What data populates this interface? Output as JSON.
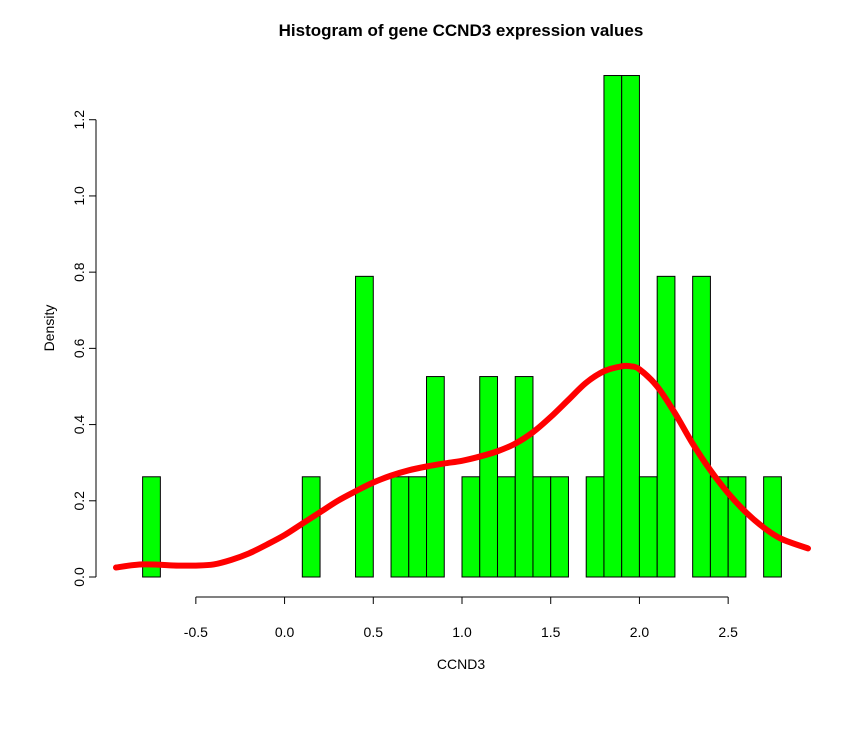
{
  "chart_data": {
    "type": "bar",
    "title": "Histogram of gene CCND3 expression values",
    "xlabel": "CCND3",
    "ylabel": "Density",
    "xlim": [
      -0.95,
      2.95
    ],
    "ylim": [
      0,
      1.32
    ],
    "x_ticks": [
      "-0.5",
      "0.0",
      "0.5",
      "1.0",
      "1.5",
      "2.0",
      "2.5"
    ],
    "y_ticks": [
      "0.0",
      "0.2",
      "0.4",
      "0.6",
      "0.8",
      "1.0",
      "1.2"
    ],
    "bar_color": "#00ff00",
    "line_color": "#ff0000",
    "bins": [
      {
        "x0": -0.8,
        "x1": -0.7,
        "density": 0.263
      },
      {
        "x0": 0.1,
        "x1": 0.2,
        "density": 0.263
      },
      {
        "x0": 0.4,
        "x1": 0.5,
        "density": 0.789
      },
      {
        "x0": 0.6,
        "x1": 0.7,
        "density": 0.263
      },
      {
        "x0": 0.7,
        "x1": 0.8,
        "density": 0.263
      },
      {
        "x0": 0.8,
        "x1": 0.9,
        "density": 0.526
      },
      {
        "x0": 1.0,
        "x1": 1.1,
        "density": 0.263
      },
      {
        "x0": 1.1,
        "x1": 1.2,
        "density": 0.526
      },
      {
        "x0": 1.2,
        "x1": 1.3,
        "density": 0.263
      },
      {
        "x0": 1.3,
        "x1": 1.4,
        "density": 0.526
      },
      {
        "x0": 1.4,
        "x1": 1.5,
        "density": 0.263
      },
      {
        "x0": 1.5,
        "x1": 1.6,
        "density": 0.263
      },
      {
        "x0": 1.7,
        "x1": 1.8,
        "density": 0.263
      },
      {
        "x0": 1.8,
        "x1": 1.9,
        "density": 1.316
      },
      {
        "x0": 1.9,
        "x1": 2.0,
        "density": 1.316
      },
      {
        "x0": 2.0,
        "x1": 2.1,
        "density": 0.263
      },
      {
        "x0": 2.1,
        "x1": 2.2,
        "density": 0.789
      },
      {
        "x0": 2.3,
        "x1": 2.4,
        "density": 0.789
      },
      {
        "x0": 2.4,
        "x1": 2.5,
        "density": 0.263
      },
      {
        "x0": 2.5,
        "x1": 2.6,
        "density": 0.263
      },
      {
        "x0": 2.7,
        "x1": 2.8,
        "density": 0.263
      }
    ],
    "density_curve": {
      "x": [
        -0.95,
        -0.8,
        -0.6,
        -0.5,
        -0.4,
        -0.3,
        -0.2,
        -0.1,
        0.0,
        0.1,
        0.2,
        0.3,
        0.4,
        0.5,
        0.6,
        0.7,
        0.8,
        0.9,
        1.0,
        1.1,
        1.2,
        1.3,
        1.4,
        1.5,
        1.6,
        1.7,
        1.8,
        1.9,
        1.95,
        2.0,
        2.1,
        2.2,
        2.3,
        2.4,
        2.5,
        2.6,
        2.7,
        2.8,
        2.95
      ],
      "y": [
        0.025,
        0.033,
        0.03,
        0.03,
        0.033,
        0.045,
        0.062,
        0.085,
        0.11,
        0.14,
        0.17,
        0.2,
        0.225,
        0.248,
        0.266,
        0.28,
        0.29,
        0.298,
        0.305,
        0.316,
        0.33,
        0.35,
        0.38,
        0.42,
        0.465,
        0.51,
        0.54,
        0.553,
        0.553,
        0.545,
        0.5,
        0.43,
        0.35,
        0.28,
        0.22,
        0.17,
        0.13,
        0.1,
        0.075
      ]
    }
  }
}
